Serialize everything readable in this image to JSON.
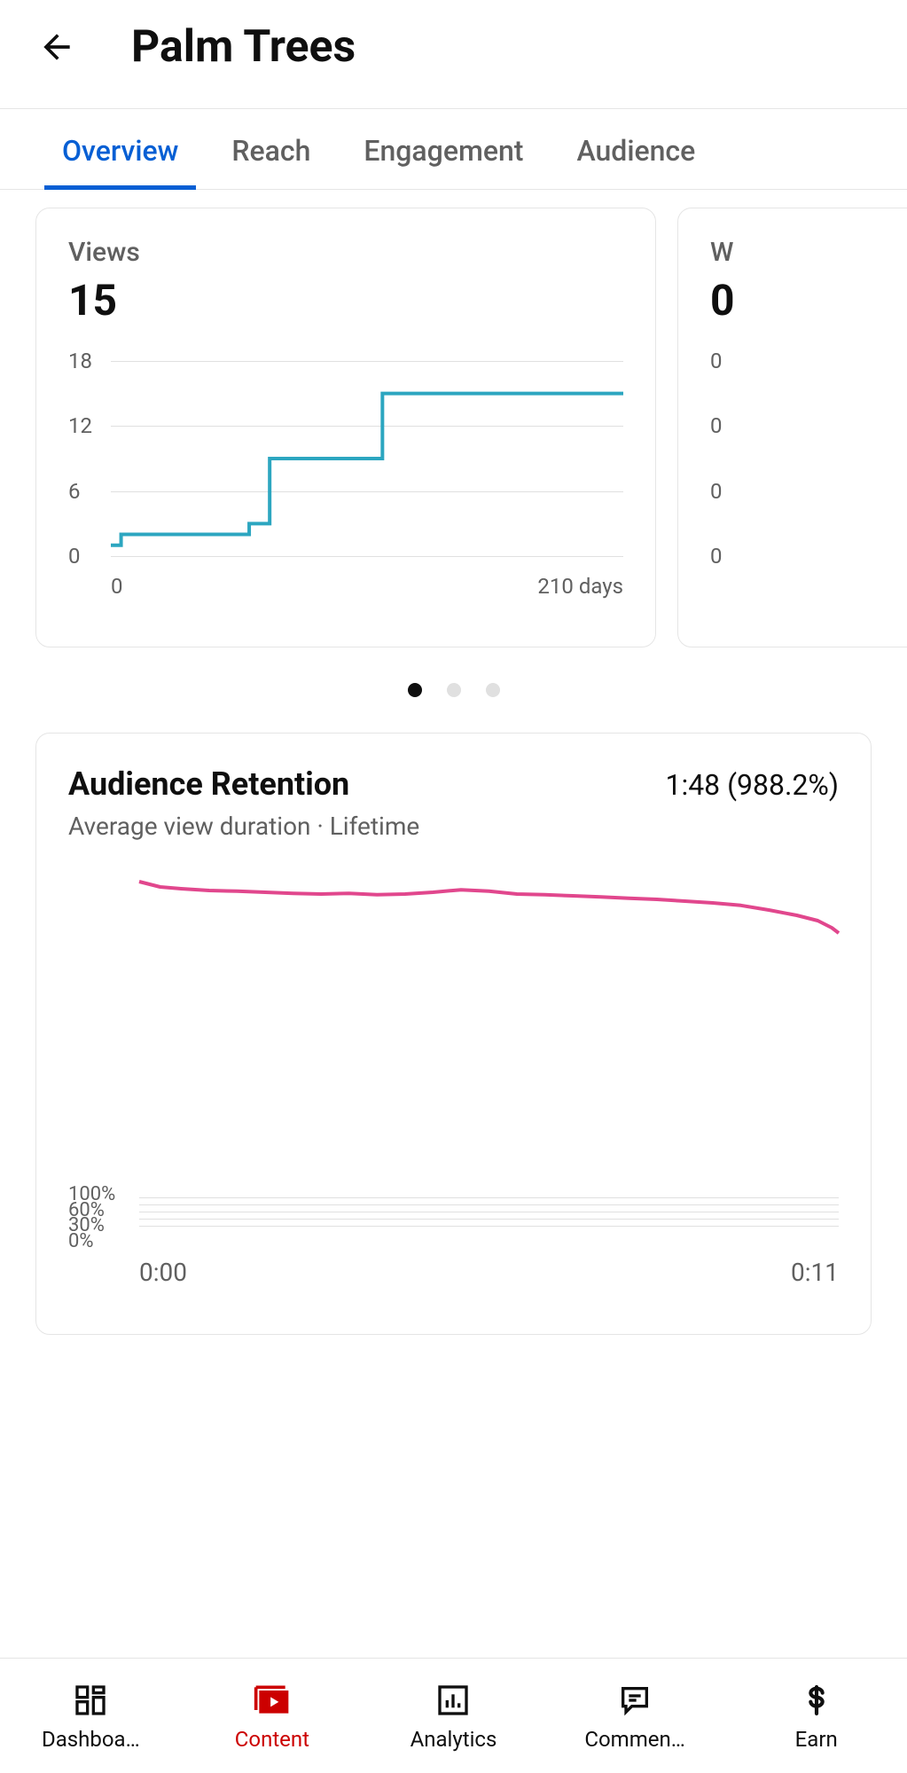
{
  "header": {
    "title": "Palm Trees"
  },
  "tabs": [
    {
      "label": "Overview",
      "active": true
    },
    {
      "label": "Reach",
      "active": false
    },
    {
      "label": "Engagement",
      "active": false
    },
    {
      "label": "Audience",
      "active": false
    }
  ],
  "views_card": {
    "label": "Views",
    "value": "15",
    "chart": {
      "type": "step-line",
      "line_color": "#2ca6c0",
      "line_width": 4,
      "grid_color": "#e0e0e0",
      "y_ticks": [
        0,
        6,
        12,
        18
      ],
      "y_max": 18,
      "x_labels": [
        "0",
        "210 days"
      ],
      "points": [
        [
          0.0,
          1
        ],
        [
          0.02,
          2
        ],
        [
          0.25,
          2
        ],
        [
          0.27,
          3
        ],
        [
          0.3,
          3
        ],
        [
          0.31,
          9
        ],
        [
          0.52,
          9
        ],
        [
          0.53,
          15
        ],
        [
          1.0,
          15
        ]
      ]
    }
  },
  "peek_card": {
    "label": "W",
    "value": "0",
    "y_ticks": [
      "0",
      "0",
      "0",
      "0"
    ]
  },
  "pagination": {
    "count": 3,
    "active_index": 0
  },
  "retention_card": {
    "title": "Audience Retention",
    "stat": "1:48 (988.2%)",
    "subtitle": "Average view duration · Lifetime",
    "chart": {
      "type": "line",
      "line_color": "#e1478d",
      "line_width": 4,
      "y_labels": [
        "100%",
        "60%",
        "30%",
        "0%"
      ],
      "x_labels": [
        "0:00",
        "0:11"
      ],
      "y_max": 1000,
      "points": [
        [
          0.0,
          985
        ],
        [
          0.03,
          970
        ],
        [
          0.06,
          965
        ],
        [
          0.1,
          960
        ],
        [
          0.14,
          958
        ],
        [
          0.18,
          955
        ],
        [
          0.22,
          952
        ],
        [
          0.26,
          950
        ],
        [
          0.3,
          952
        ],
        [
          0.34,
          948
        ],
        [
          0.38,
          950
        ],
        [
          0.42,
          955
        ],
        [
          0.46,
          962
        ],
        [
          0.5,
          958
        ],
        [
          0.54,
          950
        ],
        [
          0.58,
          948
        ],
        [
          0.62,
          945
        ],
        [
          0.66,
          942
        ],
        [
          0.7,
          938
        ],
        [
          0.74,
          935
        ],
        [
          0.78,
          930
        ],
        [
          0.82,
          925
        ],
        [
          0.86,
          918
        ],
        [
          0.9,
          905
        ],
        [
          0.94,
          890
        ],
        [
          0.97,
          875
        ],
        [
          0.99,
          855
        ],
        [
          1.0,
          840
        ]
      ]
    }
  },
  "bottom_nav": [
    {
      "label": "Dashboard",
      "icon": "dashboard",
      "active": false
    },
    {
      "label": "Content",
      "icon": "content",
      "active": true
    },
    {
      "label": "Analytics",
      "icon": "analytics",
      "active": false
    },
    {
      "label": "Comments",
      "icon": "comments",
      "active": false
    },
    {
      "label": "Earn",
      "icon": "earn",
      "active": false
    }
  ],
  "colors": {
    "accent_blue": "#065fd4",
    "text_primary": "#0f0f0f",
    "text_secondary": "#606060",
    "border": "#e5e5e5",
    "youtube_red": "#cc0000"
  }
}
